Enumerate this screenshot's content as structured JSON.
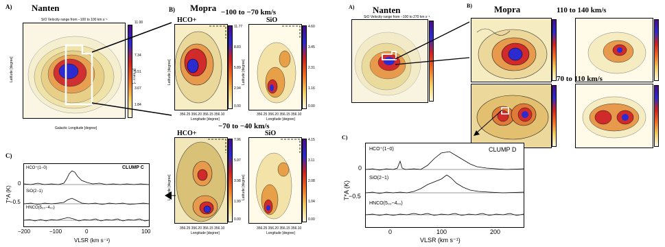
{
  "left_figure": {
    "panel_a": {
      "label": "A)",
      "title": "Nanten",
      "map_title": "SiO Velocity range from −100 to 100 km s⁻¹",
      "xlabel": "Galactic Longitude [degree]",
      "ylabel": "Latitude [degree]",
      "cbar_unit": "[K km s⁻¹]",
      "cbar_ticks": [
        "11.00",
        "7.34",
        "5.51",
        "3.67",
        "1.84"
      ]
    },
    "panel_b": {
      "label": "B)",
      "title": "Mopra",
      "range_top": "−100 to −70 km/s",
      "range_bottom": "−70 to −40 km/s",
      "maps": [
        {
          "mol": "HCO+",
          "cbar_ticks": [
            "11.77",
            "8.83",
            "5.89",
            "2.94",
            "0.00"
          ]
        },
        {
          "mol": "SiO",
          "cbar_ticks": [
            "4.60",
            "3.45",
            "2.31",
            "1.16",
            "0.00"
          ]
        },
        {
          "mol": "HCO+",
          "cbar_ticks": [
            "7.96",
            "5.97",
            "3.98",
            "1.99",
            "0.00"
          ]
        },
        {
          "mol": "SiO",
          "cbar_ticks": [
            "4.15",
            "3.11",
            "2.08",
            "1.04",
            "0.00"
          ]
        }
      ],
      "map_xlabel": "Longitude [degree]",
      "map_ylabel": "Latitude [degree]",
      "map_xticks": "356.25 356.20 356.15 356.10"
    },
    "panel_c": {
      "label": "C)",
      "clump": "CLUMP C",
      "lines": [
        "HCO⁺(1−0)",
        "SiO(2−1)",
        "HNCO(5₀₀−4₀₀)"
      ],
      "yticks": [
        "0",
        "−0.5"
      ],
      "xticks": [
        "−200",
        "−100",
        "0",
        "100"
      ],
      "ylabel": "T*A (K)",
      "xlabel": "VLSR (km s⁻¹)"
    }
  },
  "right_figure": {
    "panel_a": {
      "label": "A)",
      "title": "Nanten",
      "map_title": "SiO Velocity range from −100 to 270 km s⁻¹"
    },
    "panel_b": {
      "label": "B)",
      "title": "Mopra",
      "range_top": "110 to 140 km/s",
      "range_bottom": "70 to 110 km/s"
    },
    "panel_c": {
      "label": "C)",
      "clump": "CLUMP D",
      "lines": [
        "HCO⁺(1−0)",
        "SiO(2−1)",
        "HNCO(5₀₀−4₀₀)"
      ],
      "yticks": [
        "0",
        "−0.5"
      ],
      "xticks": [
        "0",
        "100",
        "200"
      ],
      "ylabel": "T*A (K)",
      "xlabel": "VLSR (km s⁻¹)"
    }
  },
  "colors": {
    "map_low": "#fffbe0",
    "map_mid": "#f07020",
    "map_high": "#d02020",
    "map_peak": "#2b2bd0"
  }
}
